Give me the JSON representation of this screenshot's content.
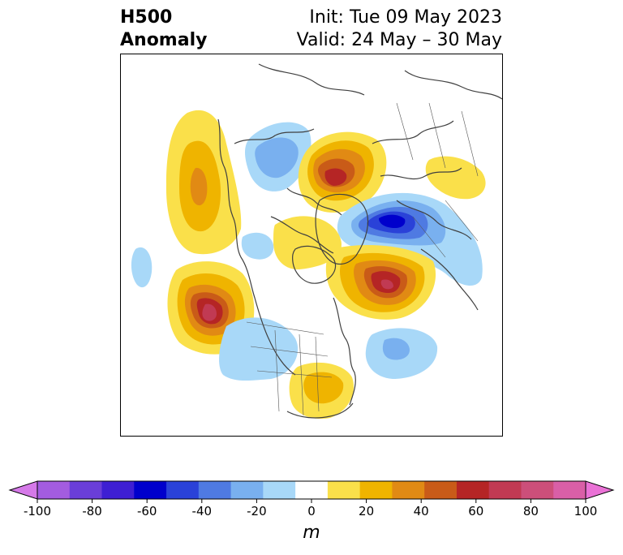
{
  "title": {
    "line1": "H500",
    "line2": "Anomaly",
    "init": "Init: Tue 09 May 2023",
    "valid": "Valid: 24 May – 30 May"
  },
  "colorbar": {
    "ticks": [
      "-100",
      "-80",
      "-60",
      "-40",
      "-20",
      "0",
      "20",
      "40",
      "60",
      "80",
      "100"
    ],
    "unit": "m",
    "colors": [
      "#d579e8",
      "#a35ce0",
      "#6a3ed8",
      "#3e1fd3",
      "#0000cc",
      "#2a42d8",
      "#4f7ae2",
      "#79b0ef",
      "#a8d8f8",
      "#ffffff",
      "#fae04a",
      "#efb400",
      "#e18a14",
      "#c95b18",
      "#b52525",
      "#c13a53",
      "#cc4f7a",
      "#d95fa7",
      "#ea72d6"
    ],
    "extend": "both"
  },
  "map": {
    "projection": "polar-stereographic",
    "region": "North America / Northern Hemisphere",
    "anomaly_centers": [
      {
        "type": "positive",
        "level_m": 20,
        "region": "Gulf of Alaska / Northeast Pacific"
      },
      {
        "type": "positive",
        "level_m": 60,
        "region": "North Pacific"
      },
      {
        "type": "negative",
        "level_m": -20,
        "region": "East Siberia"
      },
      {
        "type": "positive",
        "level_m": 60,
        "region": "Arctic / Kara Sea"
      },
      {
        "type": "negative",
        "level_m": -50,
        "region": "Northern Europe / Scandinavia"
      },
      {
        "type": "positive",
        "level_m": 60,
        "region": "Greenland / Labrador"
      },
      {
        "type": "negative",
        "level_m": -30,
        "region": "Western North Atlantic"
      },
      {
        "type": "positive",
        "level_m": 20,
        "region": "Central / Eastern United States"
      },
      {
        "type": "negative",
        "level_m": -20,
        "region": "Western United States"
      },
      {
        "type": "positive",
        "level_m": 20,
        "region": "Western Russia"
      }
    ]
  }
}
